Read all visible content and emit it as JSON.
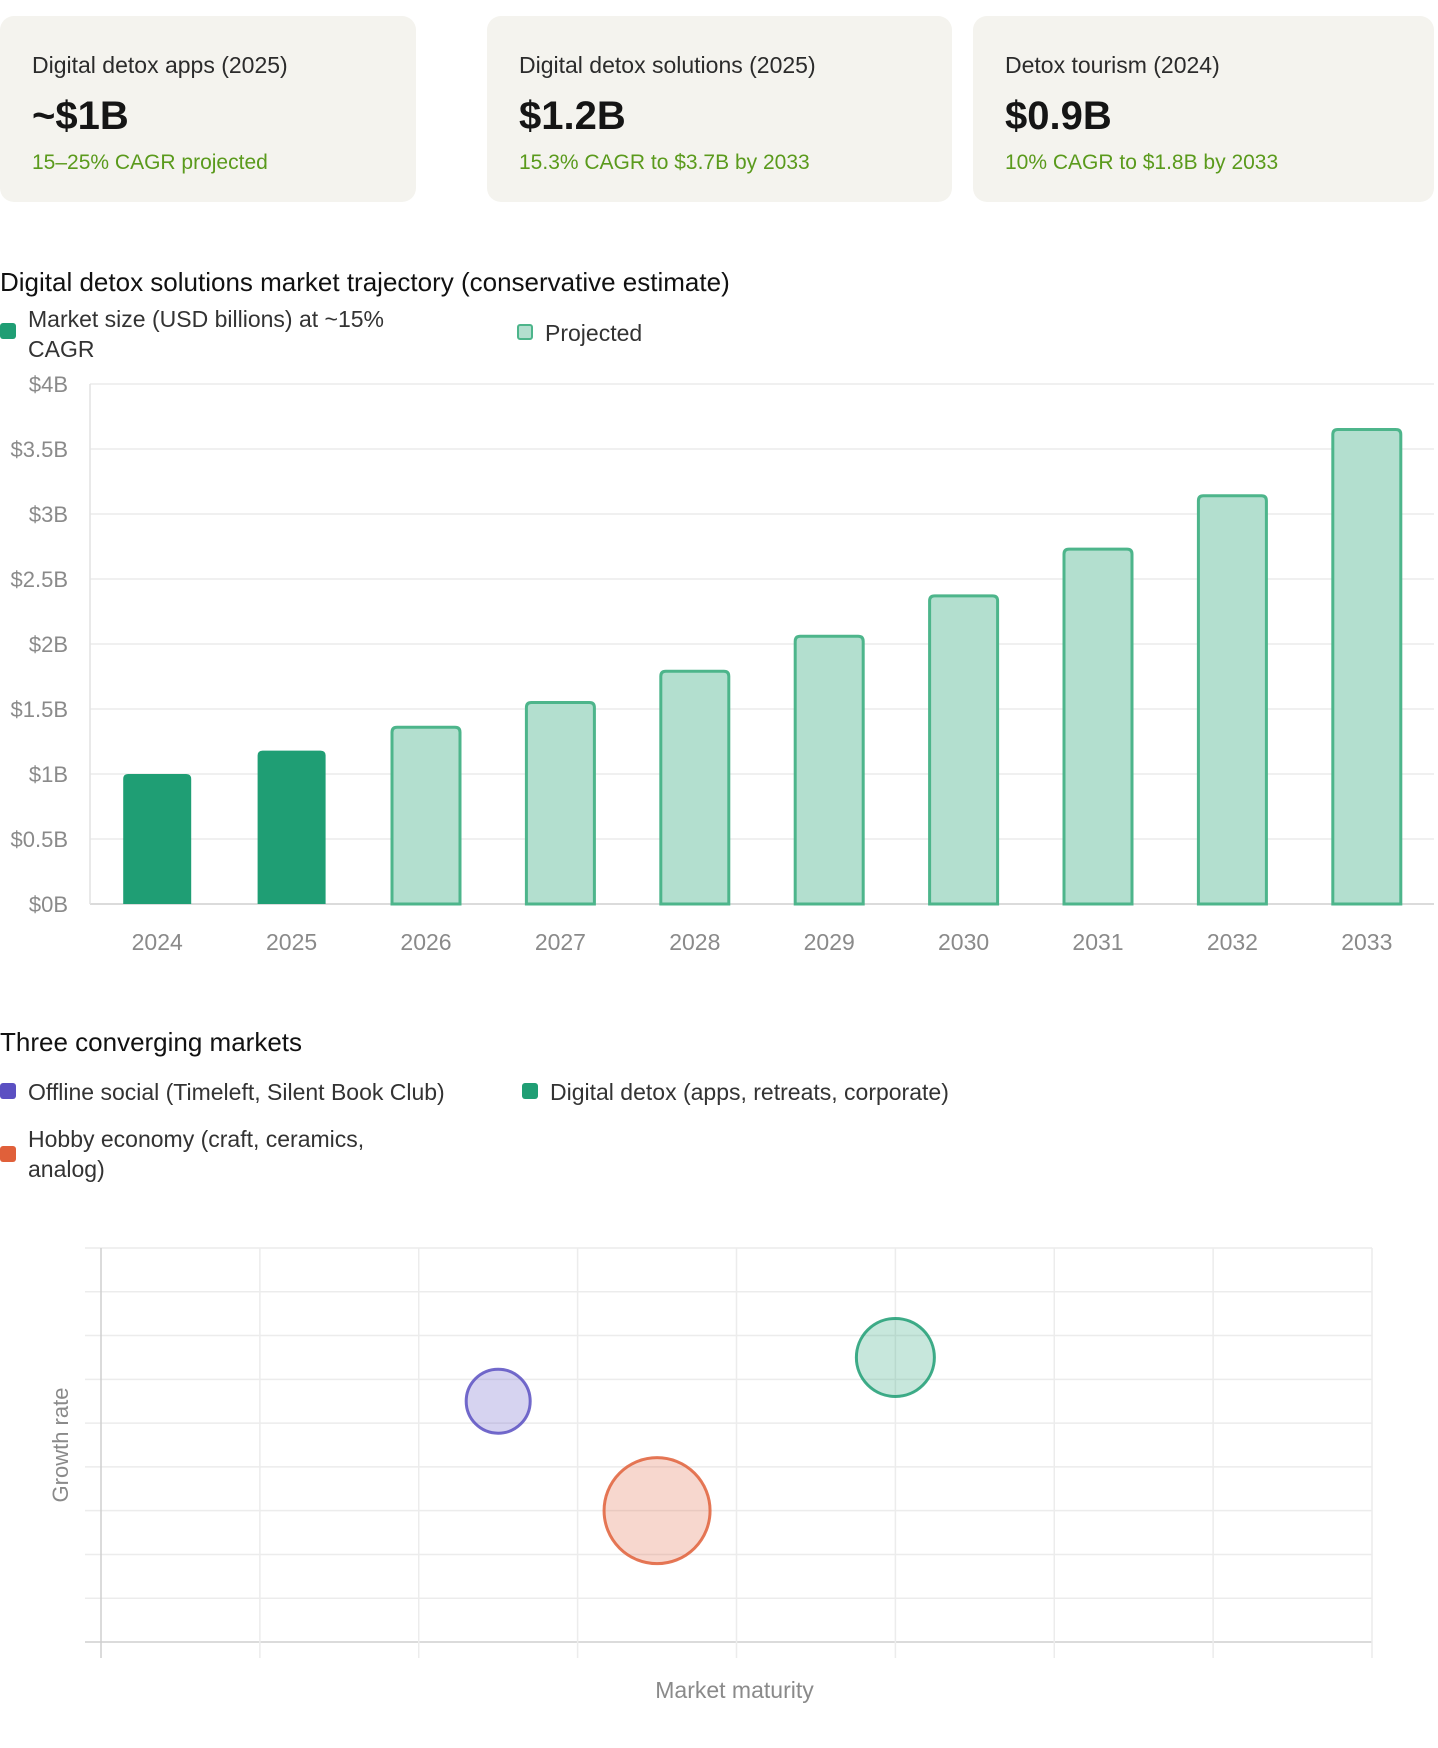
{
  "cards": [
    {
      "label": "Digital detox apps (2025)",
      "value": "~$1B",
      "sub": "15–25% CAGR projected"
    },
    {
      "label": "Digital detox solutions (2025)",
      "value": "$1.2B",
      "sub": "15.3% CAGR to $3.7B by 2033"
    },
    {
      "label": "Detox tourism (2024)",
      "value": "$0.9B",
      "sub": "10% CAGR to $1.8B by 2033"
    }
  ],
  "bar_section": {
    "title": "Digital detox solutions market trajectory (conservative estimate)",
    "legend": [
      {
        "line1": "Market size (USD billions) at ~15%",
        "line2": "CAGR"
      },
      {
        "line1": "Projected"
      }
    ]
  },
  "bubble_section": {
    "title": "Three converging markets",
    "legend": [
      {
        "line1": "Offline social (Timeleft, Silent Book Club)"
      },
      {
        "line1": "Digital detox (apps, retreats, corporate)"
      },
      {
        "line1": "Hobby economy (craft, ceramics,",
        "line2": "analog)"
      }
    ]
  },
  "colors": {
    "actual": "#1f9e74",
    "projected_fill": "#b3dfcf",
    "projected_border": "#4db58b",
    "offline_social": "#5b50c2",
    "digital_detox": "#1f9e74",
    "hobby_economy": "#e0603a",
    "card_bg": "#f4f3ee",
    "card_sub": "#5a9a1c"
  },
  "chart_data": [
    {
      "type": "bar",
      "title": "Digital detox solutions market trajectory (conservative estimate)",
      "categories": [
        "2024",
        "2025",
        "2026",
        "2027",
        "2028",
        "2029",
        "2030",
        "2031",
        "2032",
        "2033"
      ],
      "series": [
        {
          "name": "Market size (USD billions) at ~15% CAGR",
          "values": [
            1.0,
            1.18,
            1.36,
            1.55,
            1.79,
            2.06,
            2.37,
            2.73,
            3.14,
            3.65
          ]
        }
      ],
      "projected_from_index": 2,
      "yticks": [
        "$0B",
        "$0.5B",
        "$1B",
        "$1.5B",
        "$2B",
        "$2.5B",
        "$3B",
        "$3.5B",
        "$4B"
      ],
      "ylim": [
        0,
        4
      ],
      "grid": true,
      "legend": "top-left"
    },
    {
      "type": "scatter",
      "title": "Three converging markets",
      "xlabel": "Market maturity",
      "ylabel": "Growth rate",
      "xlim": [
        0,
        8
      ],
      "ylim": [
        0,
        9
      ],
      "grid": true,
      "legend": "top-left",
      "series": [
        {
          "name": "Offline social (Timeleft, Silent Book Club)",
          "points": [
            {
              "x": 2.5,
              "y": 5.5,
              "r": 32
            }
          ],
          "color_key": "offline_social"
        },
        {
          "name": "Digital detox (apps, retreats, corporate)",
          "points": [
            {
              "x": 5.0,
              "y": 6.5,
              "r": 39
            }
          ],
          "color_key": "digital_detox"
        },
        {
          "name": "Hobby economy (craft, ceramics, analog)",
          "points": [
            {
              "x": 3.5,
              "y": 3.0,
              "r": 53
            }
          ],
          "color_key": "hobby_economy"
        }
      ]
    }
  ]
}
